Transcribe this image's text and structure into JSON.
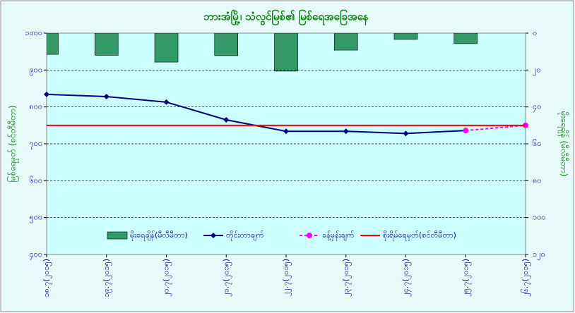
{
  "chart_data": {
    "type": "combo",
    "title": "ဘားအံမြို့၊ သံလွင်မြစ်၏ မြစ်ရေအခြေအနေ",
    "y_label": "မြစ်ရေမှတ် (စင်တီမီတာ)",
    "y2_label": "မိုးရေချိန် (မီလီမီတာ)",
    "categories": [
      "၁၈.၇(၂၀၁၅)",
      "၁၉.၇(၂၀၁၅)",
      "၂၀.၇(၂၀၁၅)",
      "၂၁.၇(၂၀၁၅)",
      "၂၂.၇(၂၀၁၅)",
      "၂၃.၇(၂၀၁၅)",
      "၂၄.၇(၂၀၁၅)",
      "၂၅.၇(၂၀၁၅)",
      "၂၆.၇(၂၀၁၅)"
    ],
    "series": [
      {
        "name": "မိုးရေချိန်(မီလီမီတာ)",
        "kind": "bar",
        "axis": "y2",
        "color": "#339966",
        "values": [
          11.5,
          12,
          15.7,
          12.2,
          20.6,
          9.2,
          3.4,
          5.7,
          null
        ]
      },
      {
        "name": "တိုင်းတာချက်",
        "kind": "line",
        "axis": "y",
        "color": "#000080",
        "marker": "diamond",
        "values": [
          834,
          828,
          813,
          765,
          734,
          734,
          728,
          736,
          null
        ]
      },
      {
        "name": "ခန့်မှန်းချက်",
        "kind": "line",
        "axis": "y",
        "color": "#ff00ff",
        "marker": "circle",
        "dashed": true,
        "values": [
          null,
          null,
          null,
          null,
          null,
          null,
          null,
          736,
          750
        ]
      },
      {
        "name": "စိုးရိမ်ရေမှတ်(စင်တီမီတာ)",
        "kind": "line",
        "axis": "y",
        "color": "#ff0000",
        "values": [
          750,
          750,
          750,
          750,
          750,
          750,
          750,
          750,
          750
        ]
      }
    ],
    "ylim": [
      400,
      1000
    ],
    "yticks": [
      {
        "value": 400,
        "label": "၄၀၀"
      },
      {
        "value": 500,
        "label": "၅၀၀"
      },
      {
        "value": 600,
        "label": "၆၀၀"
      },
      {
        "value": 700,
        "label": "၇၀၀"
      },
      {
        "value": 800,
        "label": "၈၀၀"
      },
      {
        "value": 900,
        "label": "၉၀၀"
      },
      {
        "value": 1000,
        "label": "၁၀၀၀"
      }
    ],
    "y2lim": [
      120,
      0
    ],
    "y2ticks": [
      {
        "value": 0,
        "label": "၀"
      },
      {
        "value": 20,
        "label": "၂၀"
      },
      {
        "value": 40,
        "label": "၄၀"
      },
      {
        "value": 60,
        "label": "၆၀"
      },
      {
        "value": 80,
        "label": "၈၀"
      },
      {
        "value": 100,
        "label": "၁၀၀"
      },
      {
        "value": 120,
        "label": "၁၂၀"
      }
    ],
    "grid": true
  }
}
